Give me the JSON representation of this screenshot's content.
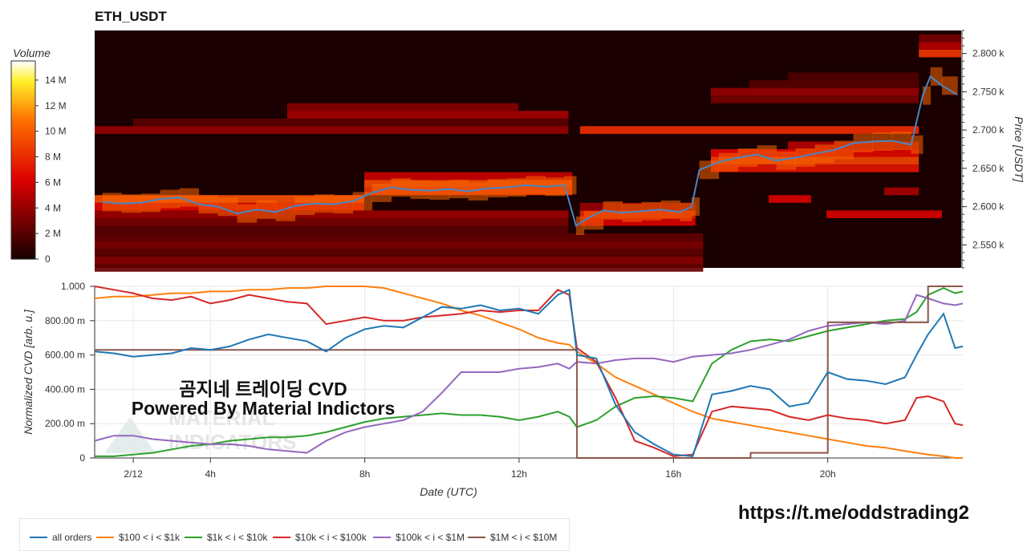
{
  "title": "ETH_USDT",
  "caption_line1": "곰지네 트레이딩 CVD",
  "caption_line2": "Powered By Material Indictors",
  "link": "https://t.me/oddstrading2",
  "watermark": [
    "MATERIAL",
    "INDICATORS"
  ],
  "colors": {
    "all_orders": "#1f77b4",
    "s100_1k": "#ff7f0e",
    "s1k_10k": "#2ca02c",
    "s10k_100k": "#d62728",
    "s100k_1M": "#9467bd",
    "s1M_10M": "#8c564b",
    "heat_bg": "#1a0000"
  },
  "chart_data": [
    {
      "type": "heatmap",
      "title": "ETH_USDT",
      "ylabel": "Price [USDT]",
      "ylim": [
        2520,
        2830
      ],
      "y_ticks": [
        2550,
        2600,
        2650,
        2700,
        2750,
        2800
      ],
      "y_tick_labels": [
        "2.550 k",
        "2.600 k",
        "2.650 k",
        "2.700 k",
        "2.750 k",
        "2.800 k"
      ],
      "colorbar": {
        "label": "Volume",
        "range": [
          0,
          15.5
        ],
        "ticks": [
          0,
          2,
          4,
          6,
          8,
          10,
          12,
          14
        ],
        "tick_labels": [
          "0",
          "2 M",
          "4 M",
          "6 M",
          "8 M",
          "10 M",
          "12 M",
          "14 M"
        ]
      },
      "x_hours": [
        1.2,
        1.7,
        2.2,
        2.7,
        3.2,
        3.7,
        4.2,
        4.7,
        5.2,
        5.7,
        6.2,
        6.7,
        7.2,
        7.7,
        8.2,
        8.7,
        9.2,
        9.7,
        10.2,
        10.7,
        11.2,
        11.7,
        12.2,
        12.7,
        13.2,
        13.5,
        13.7,
        14.2,
        14.7,
        15.2,
        15.7,
        16.2,
        16.5,
        16.7,
        17.2,
        17.7,
        18.2,
        18.7,
        19.2,
        19.7,
        20.2,
        20.7,
        21.2,
        21.7,
        22.2,
        22.5,
        22.7,
        23.0,
        23.4
      ],
      "price": [
        2606,
        2604,
        2605,
        2610,
        2612,
        2603,
        2600,
        2591,
        2596,
        2593,
        2601,
        2604,
        2603,
        2607,
        2618,
        2625,
        2622,
        2621,
        2623,
        2620,
        2624,
        2625,
        2628,
        2626,
        2628,
        2575,
        2582,
        2595,
        2592,
        2594,
        2596,
        2593,
        2600,
        2648,
        2658,
        2664,
        2668,
        2660,
        2664,
        2669,
        2674,
        2683,
        2685,
        2686,
        2681,
        2745,
        2770,
        2758,
        2746
      ],
      "bands": [
        {
          "price": 2520,
          "from": 0,
          "to": 16.8,
          "v": 2.6
        },
        {
          "price": 2530,
          "from": 0,
          "to": 16.8,
          "v": 3.5
        },
        {
          "price": 2540,
          "from": 0,
          "to": 16.8,
          "v": 2.2
        },
        {
          "price": 2550,
          "from": 0,
          "to": 16.8,
          "v": 3.2
        },
        {
          "price": 2560,
          "from": 0,
          "to": 16.8,
          "v": 2.4
        },
        {
          "price": 2570,
          "from": 0,
          "to": 13.3,
          "v": 2.0
        },
        {
          "price": 2580,
          "from": 0,
          "to": 13.3,
          "v": 3.0
        },
        {
          "price": 2590,
          "from": 0,
          "to": 13.3,
          "v": 4.2
        },
        {
          "price": 2600,
          "from": 0,
          "to": 8.0,
          "v": 6.5
        },
        {
          "price": 2610,
          "from": 0,
          "to": 8.0,
          "v": 9.5
        },
        {
          "price": 2620,
          "from": 8.0,
          "to": 13.4,
          "v": 8.5
        },
        {
          "price": 2630,
          "from": 8.0,
          "to": 13.4,
          "v": 9.2
        },
        {
          "price": 2640,
          "from": 8.0,
          "to": 13.4,
          "v": 5.5
        },
        {
          "price": 2700,
          "from": 0,
          "to": 13.3,
          "v": 4.0
        },
        {
          "price": 2700,
          "from": 13.6,
          "to": 22.4,
          "v": 8.0
        },
        {
          "price": 2710,
          "from": 2.0,
          "to": 13.3,
          "v": 2.2
        },
        {
          "price": 2720,
          "from": 6.0,
          "to": 13.3,
          "v": 4.5
        },
        {
          "price": 2730,
          "from": 6.0,
          "to": 12.0,
          "v": 3.5
        },
        {
          "price": 2740,
          "from": 17.0,
          "to": 22.4,
          "v": 3.0
        },
        {
          "price": 2750,
          "from": 17.0,
          "to": 22.4,
          "v": 4.0
        },
        {
          "price": 2760,
          "from": 18.0,
          "to": 22.4,
          "v": 2.0
        },
        {
          "price": 2770,
          "from": 19.0,
          "to": 22.4,
          "v": 1.8
        },
        {
          "price": 2800,
          "from": 22.4,
          "to": 23.5,
          "v": 8.5
        },
        {
          "price": 2810,
          "from": 22.4,
          "to": 23.5,
          "v": 5.0
        },
        {
          "price": 2820,
          "from": 22.4,
          "to": 23.5,
          "v": 3.0
        },
        {
          "price": 2650,
          "from": 17.0,
          "to": 22.4,
          "v": 7.0
        },
        {
          "price": 2660,
          "from": 17.0,
          "to": 22.4,
          "v": 9.0
        },
        {
          "price": 2670,
          "from": 17.0,
          "to": 22.4,
          "v": 6.5
        },
        {
          "price": 2680,
          "from": 19.0,
          "to": 22.4,
          "v": 5.0
        },
        {
          "price": 2590,
          "from": 13.6,
          "to": 16.6,
          "v": 7.5
        },
        {
          "price": 2580,
          "from": 13.6,
          "to": 16.6,
          "v": 6.0
        },
        {
          "price": 2600,
          "from": 13.6,
          "to": 16.6,
          "v": 4.0
        },
        {
          "price": 2590,
          "from": 20.0,
          "to": 23.0,
          "v": 6.0
        },
        {
          "price": 2610,
          "from": 18.5,
          "to": 19.6,
          "v": 6.0
        },
        {
          "price": 2620,
          "from": 21.5,
          "to": 22.4,
          "v": 4.5
        }
      ]
    },
    {
      "type": "line",
      "xlabel": "Date (UTC)",
      "ylabel": "Normalized CVD [arb. u.]",
      "xlim": [
        1.0,
        23.5
      ],
      "ylim": [
        0,
        1
      ],
      "x_ticks": [
        2,
        4,
        8,
        12,
        16,
        20
      ],
      "x_tick_labels": [
        "2/12",
        "4h",
        "8h",
        "12h",
        "16h",
        "20h"
      ],
      "y_ticks": [
        0,
        0.2,
        0.4,
        0.6,
        0.8,
        1.0
      ],
      "y_tick_labels": [
        "0",
        "200.00 m",
        "400.00 m",
        "600.00 m",
        "800.00 m",
        "1.000"
      ],
      "x": [
        1.0,
        1.5,
        2.0,
        2.5,
        3.0,
        3.5,
        4.0,
        4.5,
        5.0,
        5.5,
        6.0,
        6.5,
        7.0,
        7.5,
        8.0,
        8.5,
        9.0,
        9.5,
        10.0,
        10.5,
        11.0,
        11.5,
        12.0,
        12.5,
        13.0,
        13.3,
        13.5,
        14.0,
        14.5,
        15.0,
        15.5,
        16.0,
        16.5,
        17.0,
        17.5,
        18.0,
        18.5,
        19.0,
        19.5,
        20.0,
        20.5,
        21.0,
        21.5,
        22.0,
        22.3,
        22.6,
        23.0,
        23.3,
        23.5
      ],
      "series": [
        {
          "name": "all orders",
          "values": [
            0.62,
            0.61,
            0.59,
            0.6,
            0.61,
            0.64,
            0.63,
            0.65,
            0.69,
            0.72,
            0.7,
            0.68,
            0.62,
            0.7,
            0.75,
            0.77,
            0.76,
            0.82,
            0.88,
            0.87,
            0.89,
            0.86,
            0.87,
            0.84,
            0.95,
            0.98,
            0.6,
            0.58,
            0.31,
            0.15,
            0.08,
            0.02,
            0.01,
            0.37,
            0.39,
            0.42,
            0.4,
            0.3,
            0.32,
            0.5,
            0.46,
            0.45,
            0.43,
            0.47,
            0.6,
            0.72,
            0.84,
            0.64,
            0.65
          ]
        },
        {
          "name": "$100 < i < $1k",
          "values": [
            0.93,
            0.94,
            0.94,
            0.95,
            0.96,
            0.96,
            0.97,
            0.97,
            0.98,
            0.98,
            0.99,
            0.99,
            1.0,
            1.0,
            1.0,
            0.99,
            0.96,
            0.93,
            0.9,
            0.86,
            0.83,
            0.79,
            0.75,
            0.7,
            0.67,
            0.66,
            0.62,
            0.55,
            0.47,
            0.42,
            0.37,
            0.32,
            0.27,
            0.23,
            0.21,
            0.19,
            0.17,
            0.15,
            0.13,
            0.11,
            0.09,
            0.07,
            0.06,
            0.04,
            0.03,
            0.02,
            0.01,
            0.0,
            0.0
          ]
        },
        {
          "name": "$1k < i < $10k",
          "values": [
            0.01,
            0.01,
            0.02,
            0.03,
            0.05,
            0.07,
            0.08,
            0.1,
            0.11,
            0.12,
            0.12,
            0.13,
            0.15,
            0.18,
            0.21,
            0.23,
            0.24,
            0.25,
            0.26,
            0.25,
            0.25,
            0.24,
            0.22,
            0.24,
            0.27,
            0.24,
            0.18,
            0.22,
            0.3,
            0.35,
            0.36,
            0.35,
            0.33,
            0.55,
            0.63,
            0.68,
            0.69,
            0.68,
            0.71,
            0.74,
            0.76,
            0.78,
            0.8,
            0.81,
            0.85,
            0.95,
            0.99,
            0.96,
            0.97
          ]
        },
        {
          "name": "$10k < i < $100k",
          "values": [
            1.0,
            0.98,
            0.96,
            0.93,
            0.92,
            0.94,
            0.9,
            0.92,
            0.95,
            0.93,
            0.91,
            0.9,
            0.78,
            0.8,
            0.82,
            0.8,
            0.8,
            0.82,
            0.83,
            0.84,
            0.86,
            0.85,
            0.86,
            0.86,
            0.98,
            0.95,
            0.64,
            0.56,
            0.35,
            0.1,
            0.06,
            0.01,
            0.02,
            0.27,
            0.3,
            0.29,
            0.28,
            0.24,
            0.22,
            0.25,
            0.23,
            0.22,
            0.2,
            0.22,
            0.35,
            0.36,
            0.33,
            0.2,
            0.19
          ]
        },
        {
          "name": "$100k < i < $1M",
          "values": [
            0.1,
            0.13,
            0.13,
            0.11,
            0.1,
            0.09,
            0.08,
            0.08,
            0.07,
            0.05,
            0.04,
            0.03,
            0.1,
            0.15,
            0.18,
            0.2,
            0.22,
            0.27,
            0.38,
            0.5,
            0.5,
            0.5,
            0.52,
            0.53,
            0.55,
            0.52,
            0.56,
            0.55,
            0.57,
            0.58,
            0.58,
            0.56,
            0.59,
            0.6,
            0.61,
            0.63,
            0.66,
            0.69,
            0.74,
            0.77,
            0.78,
            0.79,
            0.78,
            0.8,
            0.95,
            0.93,
            0.9,
            0.89,
            0.9
          ]
        },
        {
          "name": "$1M < i < $10M",
          "values": [
            0.63,
            0.63,
            0.63,
            0.63,
            0.63,
            0.63,
            0.63,
            0.63,
            0.63,
            0.63,
            0.63,
            0.63,
            0.63,
            0.63,
            0.63,
            0.63,
            0.63,
            0.63,
            0.63,
            0.63,
            0.63,
            0.63,
            0.63,
            0.63,
            0.63,
            0.63,
            0.0,
            0.0,
            0.0,
            0.0,
            0.0,
            0.0,
            0.0,
            0.0,
            0.0,
            0.03,
            0.03,
            0.03,
            0.03,
            0.79,
            0.79,
            0.79,
            0.79,
            0.79,
            0.79,
            1.0,
            1.0,
            1.0,
            1.0
          ]
        }
      ]
    }
  ]
}
